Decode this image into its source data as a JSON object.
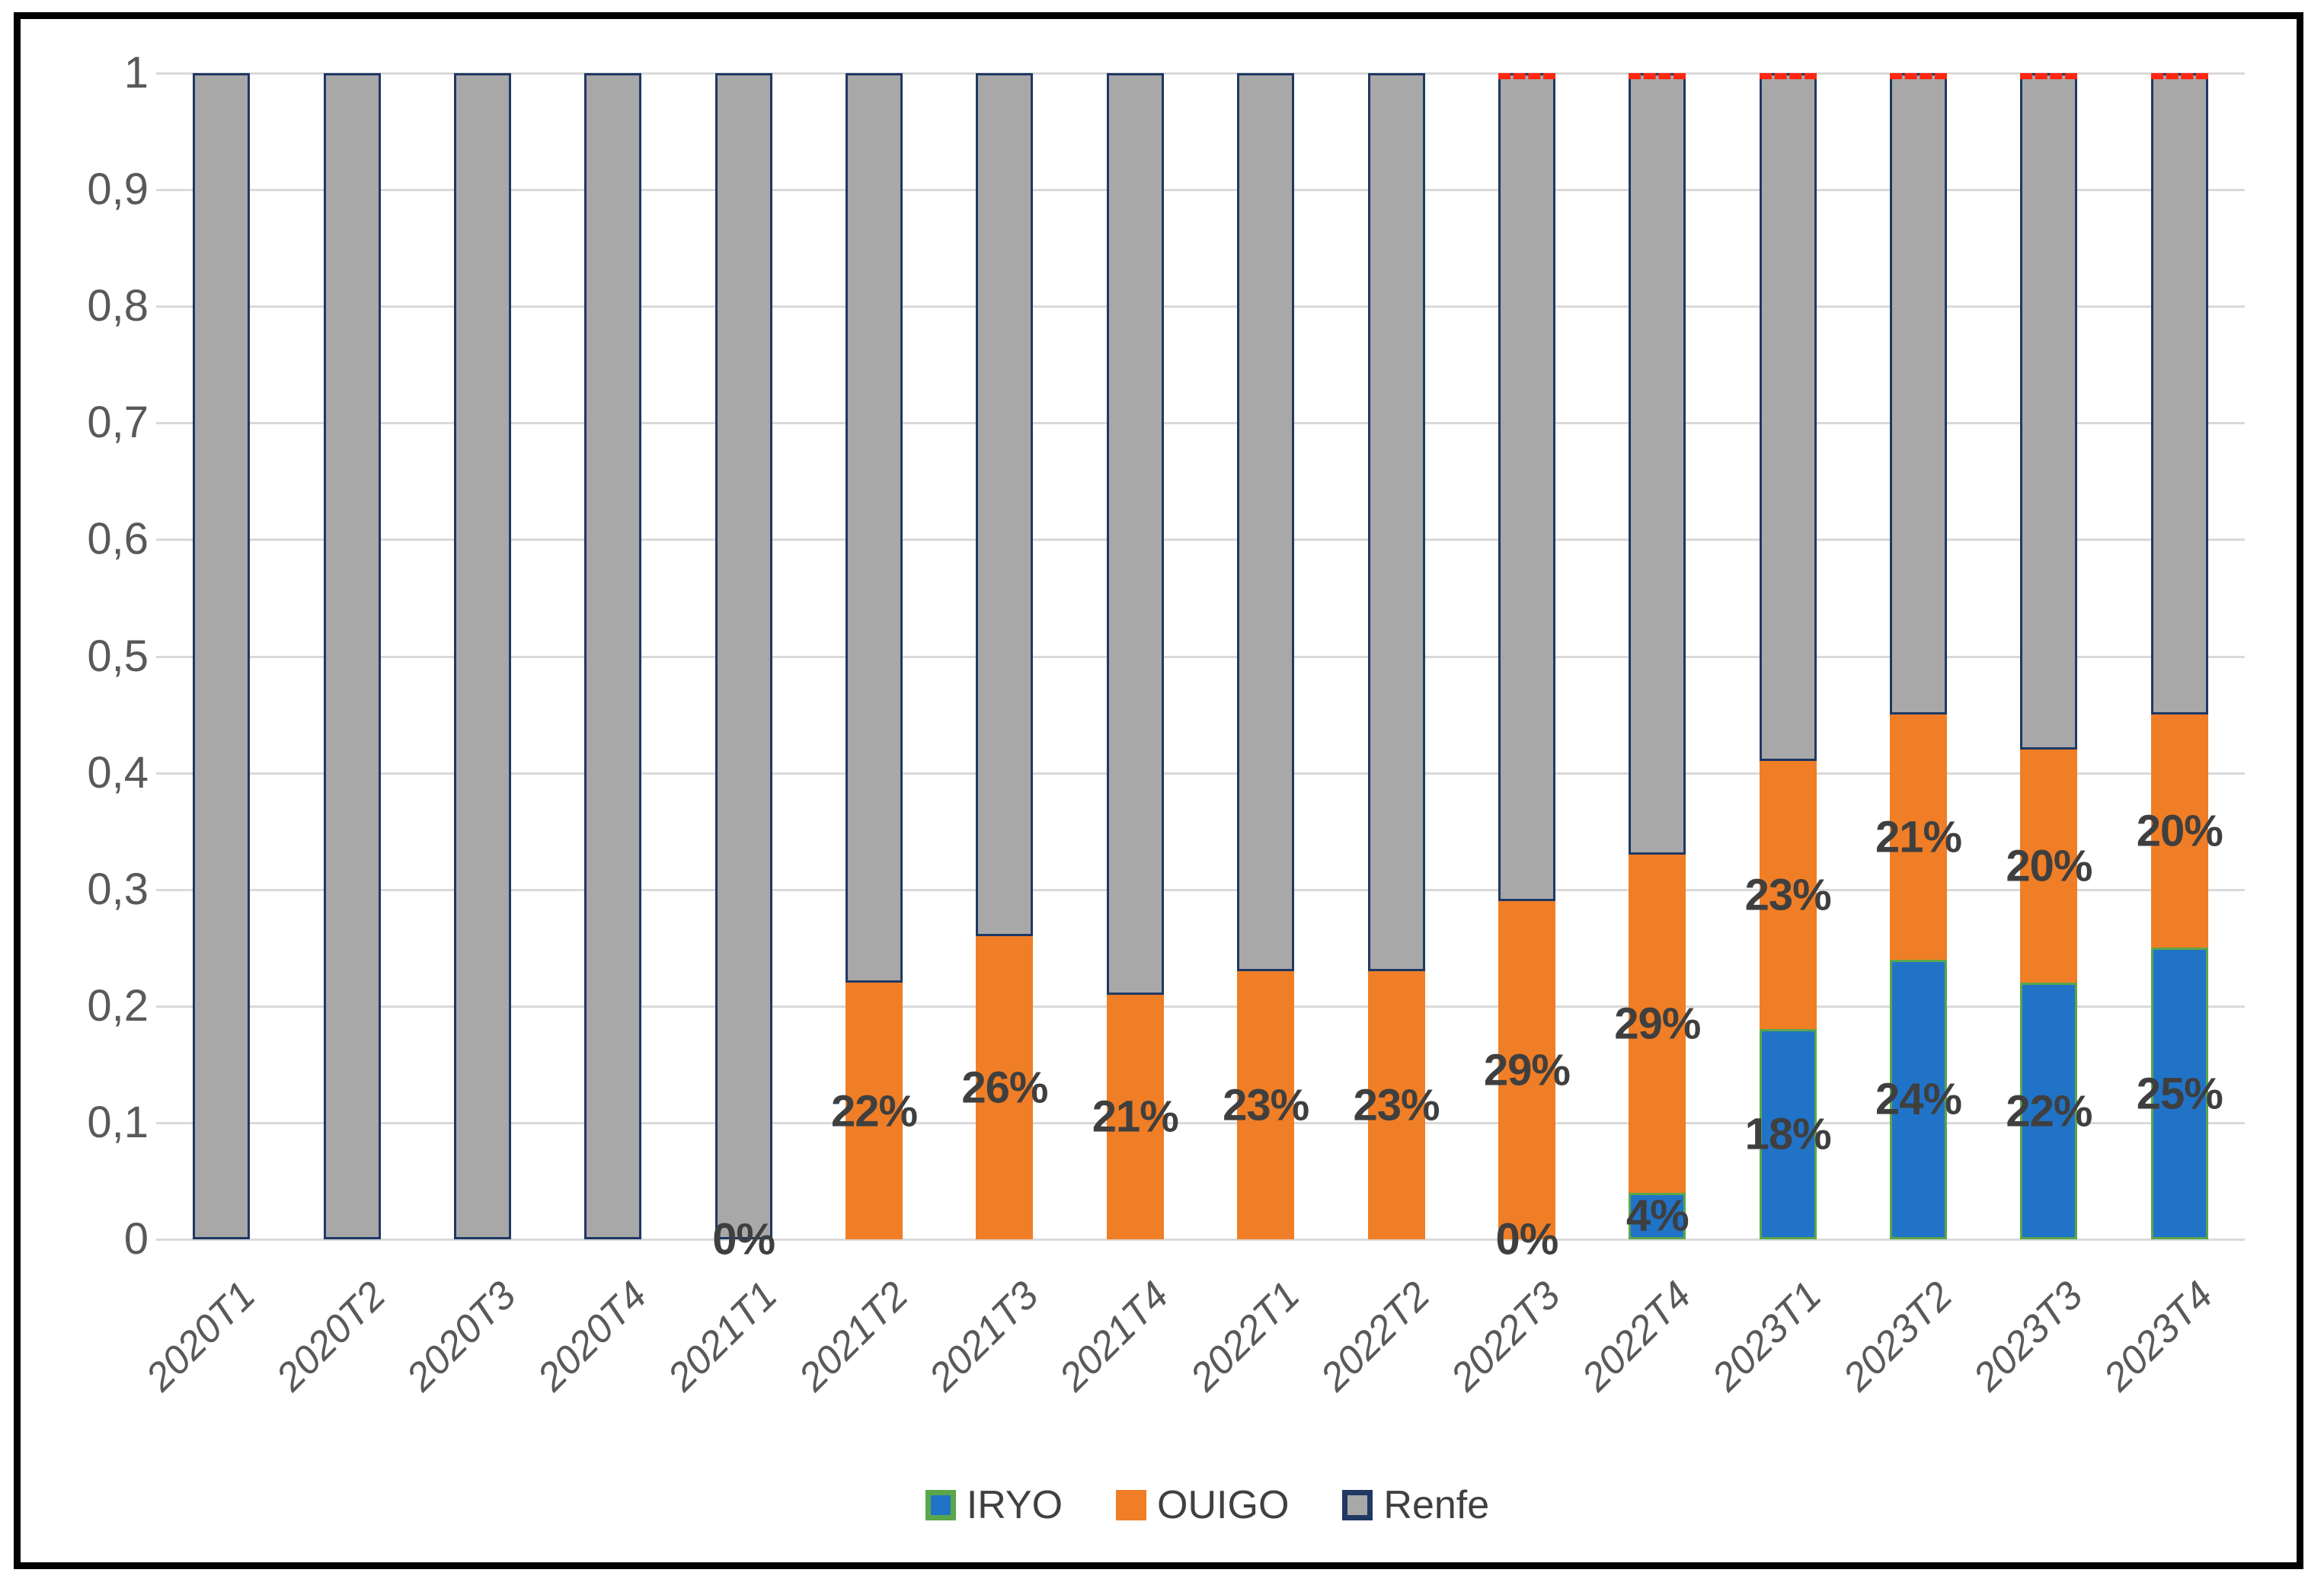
{
  "chart_data": {
    "type": "bar",
    "stacked": true,
    "normalized": true,
    "title": "",
    "xlabel": "",
    "ylabel": "",
    "ylim": [
      0,
      1
    ],
    "grid": "horizontal",
    "legend_position": "bottom-center",
    "decimal_separator": ",",
    "y_ticks": [
      {
        "label": "1",
        "value": 1.0
      },
      {
        "label": "0,9",
        "value": 0.9
      },
      {
        "label": "0,8",
        "value": 0.8
      },
      {
        "label": "0,7",
        "value": 0.7
      },
      {
        "label": "0,6",
        "value": 0.6
      },
      {
        "label": "0,5",
        "value": 0.5
      },
      {
        "label": "0,4",
        "value": 0.4
      },
      {
        "label": "0,3",
        "value": 0.3
      },
      {
        "label": "0,2",
        "value": 0.2
      },
      {
        "label": "0,1",
        "value": 0.1
      },
      {
        "label": "0",
        "value": 0.0
      }
    ],
    "categories": [
      "2020T1",
      "2020T2",
      "2020T3",
      "2020T4",
      "2021T1",
      "2021T2",
      "2021T3",
      "2021T4",
      "2022T1",
      "2022T2",
      "2022T3",
      "2022T4",
      "2023T1",
      "2023T2",
      "2023T3",
      "2023T4"
    ],
    "series": [
      {
        "name": "IRYO",
        "fill": "#2173c8",
        "border": "#5ba64b",
        "values": [
          0,
          0,
          0,
          0,
          0,
          0,
          0,
          0,
          0,
          0,
          0,
          0.04,
          0.18,
          0.24,
          0.22,
          0.25
        ]
      },
      {
        "name": "OUIGO",
        "fill": "#f07e26",
        "border": null,
        "values": [
          0,
          0,
          0,
          0,
          0,
          0.22,
          0.26,
          0.21,
          0.23,
          0.23,
          0.29,
          0.29,
          0.23,
          0.21,
          0.2,
          0.2
        ]
      },
      {
        "name": "Renfe",
        "fill": "#a8a8a8",
        "border": "#1f3864",
        "values": [
          1,
          1,
          1,
          1,
          1,
          0.78,
          0.74,
          0.79,
          0.77,
          0.77,
          0.71,
          0.67,
          0.59,
          0.55,
          0.58,
          0.55
        ]
      }
    ],
    "data_labels": [
      {
        "category": "2021T1",
        "series": "OUIGO",
        "text": "0%",
        "at_baseline": true
      },
      {
        "category": "2021T2",
        "series": "OUIGO",
        "text": "22%"
      },
      {
        "category": "2021T3",
        "series": "OUIGO",
        "text": "26%"
      },
      {
        "category": "2021T4",
        "series": "OUIGO",
        "text": "21%"
      },
      {
        "category": "2022T1",
        "series": "OUIGO",
        "text": "23%"
      },
      {
        "category": "2022T2",
        "series": "OUIGO",
        "text": "23%"
      },
      {
        "category": "2022T3",
        "series": "IRYO",
        "text": "0%",
        "at_baseline": true
      },
      {
        "category": "2022T3",
        "series": "OUIGO",
        "text": "29%"
      },
      {
        "category": "2022T4",
        "series": "IRYO",
        "text": "4%"
      },
      {
        "category": "2022T4",
        "series": "OUIGO",
        "text": "29%"
      },
      {
        "category": "2023T1",
        "series": "IRYO",
        "text": "18%"
      },
      {
        "category": "2023T1",
        "series": "OUIGO",
        "text": "23%"
      },
      {
        "category": "2023T2",
        "series": "IRYO",
        "text": "24%"
      },
      {
        "category": "2023T2",
        "series": "OUIGO",
        "text": "21%"
      },
      {
        "category": "2023T3",
        "series": "IRYO",
        "text": "22%"
      },
      {
        "category": "2023T3",
        "series": "OUIGO",
        "text": "20%"
      },
      {
        "category": "2023T4",
        "series": "IRYO",
        "text": "25%"
      },
      {
        "category": "2023T4",
        "series": "OUIGO",
        "text": "20%"
      }
    ],
    "red_dash_top_categories": [
      "2022T3",
      "2022T4",
      "2023T1",
      "2023T2",
      "2023T3",
      "2023T4"
    ],
    "red_dash_color": "#ff2612",
    "legend": [
      {
        "label": "IRYO",
        "fill": "#2173c8",
        "border": "#5ba64b"
      },
      {
        "label": "OUIGO",
        "fill": "#f07e26",
        "border": null
      },
      {
        "label": "Renfe",
        "fill": "#a8a8a8",
        "border": "#1f3864"
      }
    ],
    "colors": {
      "gridline": "#d9d9d9",
      "axis_text": "#595959",
      "data_label_text": "#3f3f3f",
      "legend_text": "#404040",
      "frame_border": "#000000",
      "background": "#ffffff"
    }
  }
}
